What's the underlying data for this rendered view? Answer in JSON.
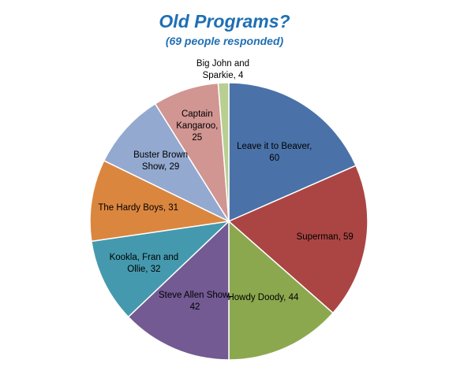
{
  "colors": {
    "title": "#1F6FB4",
    "slices": [
      "#4A72A8",
      "#AB4543",
      "#8CA84E",
      "#735A93",
      "#4599AE",
      "#DB863F",
      "#93A9D0",
      "#D19592",
      "#B9CE91"
    ]
  },
  "chart_data": {
    "type": "pie",
    "title": "Old Programs?",
    "subtitle": "(69 people responded)",
    "categories": [
      "Leave it to Beaver",
      "Superman",
      "Howdy Doody",
      "Steve Allen Show",
      "Kookla, Fran and Ollie",
      "The Hardy Boys",
      "Buster Brown Show",
      "Captain Kangaroo",
      "Big John and Sparkie"
    ],
    "values": [
      60,
      59,
      44,
      42,
      32,
      31,
      29,
      25,
      4
    ],
    "labels": [
      [
        "Leave it to Beaver,",
        "60"
      ],
      [
        "Superman, 59"
      ],
      [
        "Howdy Doody, 44"
      ],
      [
        "Steve Allen Show,",
        "42"
      ],
      [
        "Kookla, Fran and",
        "Ollie, 32"
      ],
      [
        "The Hardy Boys, 31"
      ],
      [
        "Buster Brown",
        "Show, 29"
      ],
      [
        "Captain",
        "Kangaroo,",
        "25"
      ],
      [
        "Big John and",
        "Sparkie, 4"
      ]
    ],
    "legend": "none",
    "start": "12 o'clock, clockwise"
  }
}
